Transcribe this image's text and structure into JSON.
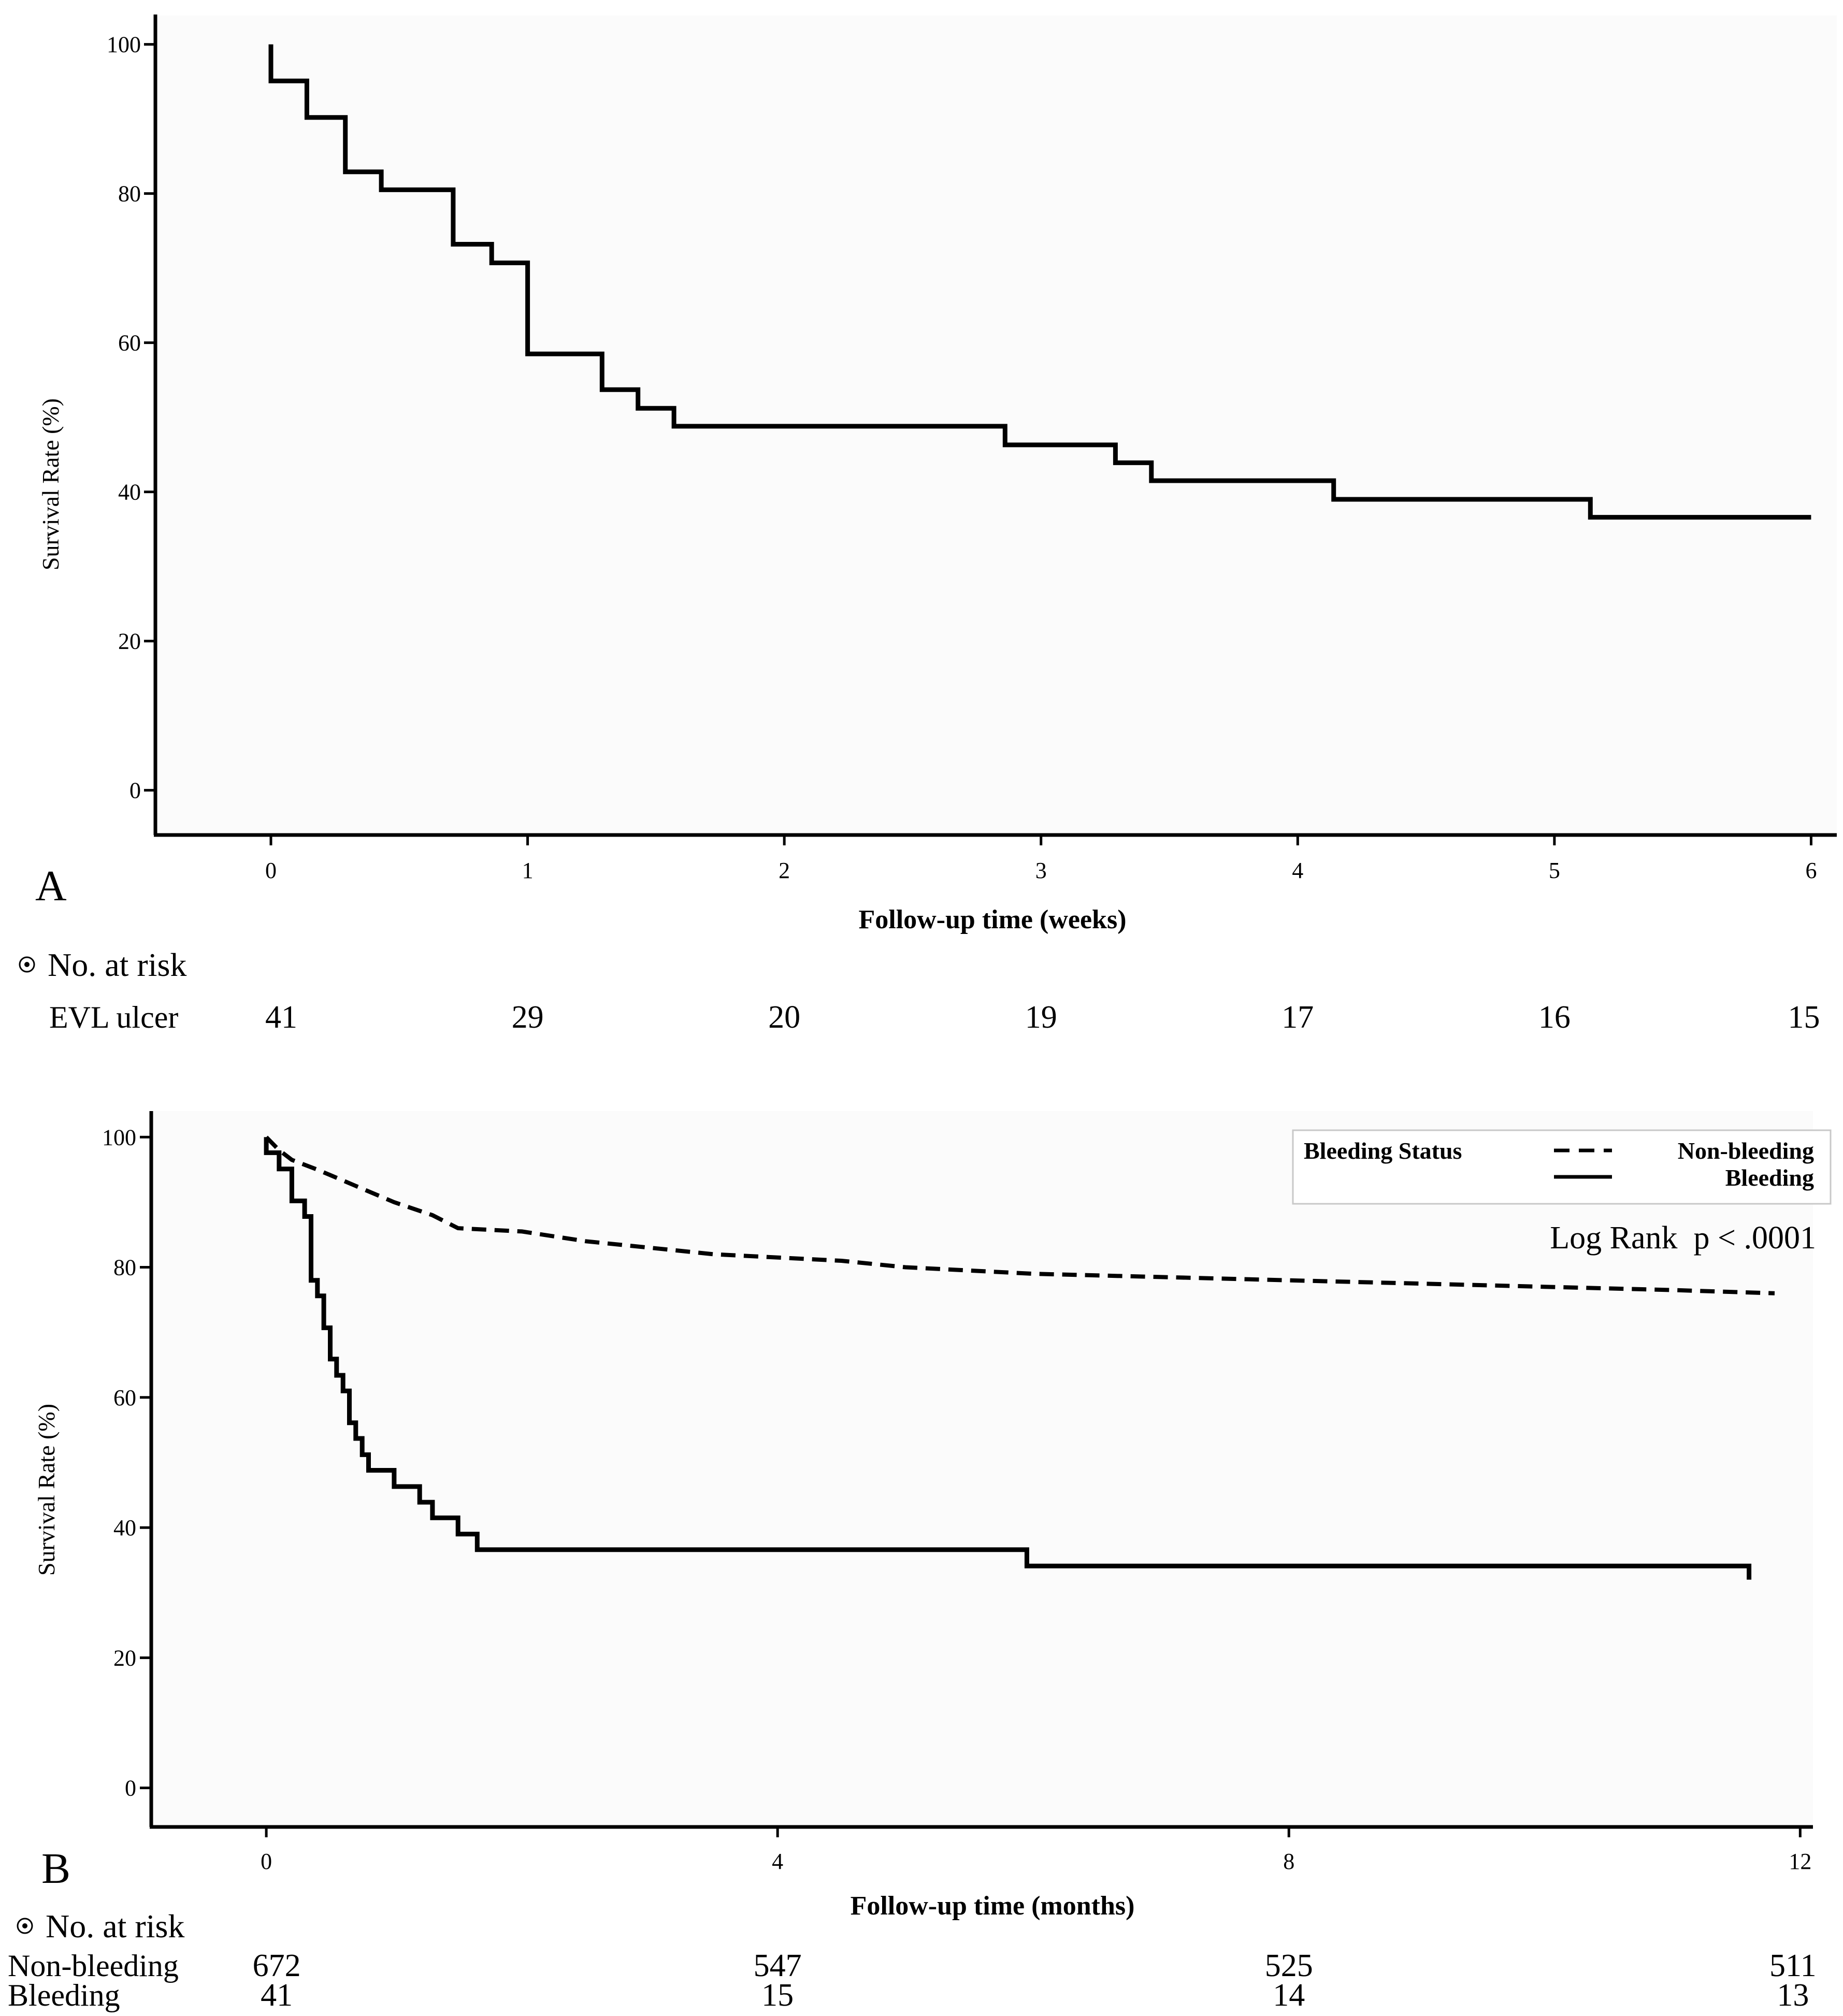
{
  "chart_data": [
    {
      "type": "line",
      "panel": "A",
      "xlabel": "Follow-up time (weeks)",
      "ylabel": "Survival Rate (%)",
      "xlim": [
        -0.45,
        6.1
      ],
      "ylim": [
        -6,
        104
      ],
      "xticks": [
        0,
        1,
        2,
        3,
        4,
        5,
        6
      ],
      "yticks": [
        0,
        20,
        40,
        60,
        80,
        100
      ],
      "series": [
        {
          "name": "EVL ulcer",
          "style": "solid",
          "step": true,
          "points": [
            [
              0,
              100
            ],
            [
              0,
              95.1
            ],
            [
              0.14,
              95.1
            ],
            [
              0.14,
              90.2
            ],
            [
              0.29,
              90.2
            ],
            [
              0.29,
              82.9
            ],
            [
              0.43,
              82.9
            ],
            [
              0.43,
              80.5
            ],
            [
              0.71,
              80.5
            ],
            [
              0.71,
              73.2
            ],
            [
              0.86,
              73.2
            ],
            [
              0.86,
              70.7
            ],
            [
              1.0,
              70.7
            ],
            [
              1.0,
              58.5
            ],
            [
              1.29,
              58.5
            ],
            [
              1.29,
              53.7
            ],
            [
              1.43,
              53.7
            ],
            [
              1.43,
              51.2
            ],
            [
              1.57,
              51.2
            ],
            [
              1.57,
              48.8
            ],
            [
              2.86,
              48.8
            ],
            [
              2.86,
              46.3
            ],
            [
              3.29,
              46.3
            ],
            [
              3.29,
              43.9
            ],
            [
              3.43,
              43.9
            ],
            [
              3.43,
              41.5
            ],
            [
              4.14,
              41.5
            ],
            [
              4.14,
              39.0
            ],
            [
              5.14,
              39.0
            ],
            [
              5.14,
              36.6
            ],
            [
              6.0,
              36.6
            ]
          ]
        }
      ],
      "risk_table": {
        "title": "No. at risk",
        "rows": [
          {
            "label": "EVL ulcer",
            "values": [
              "41",
              "29",
              "20",
              "19",
              "17",
              "16",
              "15"
            ]
          }
        ]
      }
    },
    {
      "type": "line",
      "panel": "B",
      "xlabel": "Follow-up time (months)",
      "ylabel": "Survival Rate (%)",
      "xlim": [
        -0.9,
        12.1
      ],
      "ylim": [
        -6,
        104
      ],
      "xticks": [
        0,
        4,
        8,
        12
      ],
      "yticks": [
        0,
        20,
        40,
        60,
        80,
        100
      ],
      "legend": {
        "title": "Bleeding Status",
        "entries": [
          {
            "label": "Non-bleeding",
            "style": "dashed"
          },
          {
            "label": "Bleeding",
            "style": "solid"
          }
        ],
        "placement": "top-right"
      },
      "annotation": "Log Rank  p < .0001",
      "series": [
        {
          "name": "Non-bleeding",
          "style": "dashed",
          "step": false,
          "points": [
            [
              0,
              100
            ],
            [
              0.1,
              98
            ],
            [
              0.2,
              96.5
            ],
            [
              0.4,
              95
            ],
            [
              0.7,
              92.5
            ],
            [
              1.0,
              90
            ],
            [
              1.3,
              88
            ],
            [
              1.5,
              86
            ],
            [
              2.0,
              85.5
            ],
            [
              2.5,
              84
            ],
            [
              3.0,
              83
            ],
            [
              3.5,
              82
            ],
            [
              4.5,
              81
            ],
            [
              5.0,
              80
            ],
            [
              6.0,
              79
            ],
            [
              7.0,
              78.5
            ],
            [
              8.0,
              78
            ],
            [
              9.0,
              77.5
            ],
            [
              10.0,
              77
            ],
            [
              11.0,
              76.5
            ],
            [
              11.8,
              76
            ]
          ]
        },
        {
          "name": "Bleeding",
          "style": "solid",
          "step": true,
          "points": [
            [
              0,
              100
            ],
            [
              0,
              97.6
            ],
            [
              0.1,
              97.6
            ],
            [
              0.1,
              95.1
            ],
            [
              0.2,
              95.1
            ],
            [
              0.2,
              90.2
            ],
            [
              0.3,
              90.2
            ],
            [
              0.3,
              87.8
            ],
            [
              0.35,
              87.8
            ],
            [
              0.35,
              78.0
            ],
            [
              0.4,
              78.0
            ],
            [
              0.4,
              75.6
            ],
            [
              0.45,
              75.6
            ],
            [
              0.45,
              70.7
            ],
            [
              0.5,
              70.7
            ],
            [
              0.5,
              65.9
            ],
            [
              0.55,
              65.9
            ],
            [
              0.55,
              63.4
            ],
            [
              0.6,
              63.4
            ],
            [
              0.6,
              61.0
            ],
            [
              0.65,
              61.0
            ],
            [
              0.65,
              56.1
            ],
            [
              0.7,
              56.1
            ],
            [
              0.7,
              53.7
            ],
            [
              0.75,
              53.7
            ],
            [
              0.75,
              51.2
            ],
            [
              0.8,
              51.2
            ],
            [
              0.8,
              48.8
            ],
            [
              1.0,
              48.8
            ],
            [
              1.0,
              46.3
            ],
            [
              1.2,
              46.3
            ],
            [
              1.2,
              43.9
            ],
            [
              1.3,
              43.9
            ],
            [
              1.3,
              41.5
            ],
            [
              1.5,
              41.5
            ],
            [
              1.5,
              39.0
            ],
            [
              1.65,
              39.0
            ],
            [
              1.65,
              36.6
            ],
            [
              5.95,
              36.6
            ],
            [
              5.95,
              34.1
            ],
            [
              11.6,
              34.1
            ],
            [
              11.6,
              32
            ]
          ]
        }
      ],
      "risk_table": {
        "title": "No. at risk",
        "rows": [
          {
            "label": "Non-bleeding",
            "values": [
              "672",
              "547",
              "525",
              "511"
            ]
          },
          {
            "label": "Bleeding",
            "values": [
              "41",
              "15",
              "14",
              "13"
            ]
          }
        ]
      }
    }
  ]
}
